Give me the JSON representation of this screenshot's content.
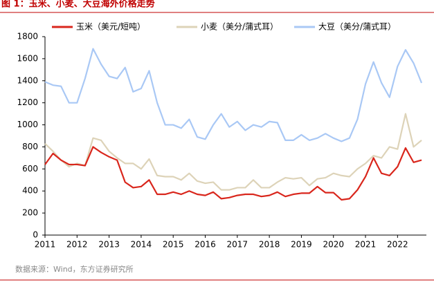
{
  "chart_data": {
    "type": "line",
    "title": "图 1：玉米、小麦、大豆海外价格走势",
    "source": "数据来源：Wind，东方证券研究所",
    "x": [
      2011,
      2011.25,
      2011.5,
      2011.75,
      2012,
      2012.25,
      2012.5,
      2012.75,
      2013,
      2013.25,
      2013.5,
      2013.75,
      2014,
      2014.25,
      2014.5,
      2014.75,
      2015,
      2015.25,
      2015.5,
      2015.75,
      2016,
      2016.25,
      2016.5,
      2016.75,
      2017,
      2017.25,
      2017.5,
      2017.75,
      2018,
      2018.25,
      2018.5,
      2018.75,
      2019,
      2019.25,
      2019.5,
      2019.75,
      2020,
      2020.25,
      2020.5,
      2020.75,
      2021,
      2021.25,
      2021.5,
      2021.75,
      2022,
      2022.25,
      2022.5,
      2022.75
    ],
    "series": [
      {
        "name": "玉米（美元/短吨）",
        "color": "#d9261c",
        "values": [
          640,
          740,
          680,
          640,
          640,
          630,
          800,
          750,
          710,
          680,
          480,
          430,
          440,
          500,
          370,
          370,
          390,
          370,
          400,
          370,
          360,
          390,
          330,
          340,
          360,
          370,
          370,
          350,
          360,
          390,
          350,
          370,
          380,
          380,
          440,
          385,
          385,
          320,
          330,
          410,
          530,
          700,
          560,
          540,
          620,
          790,
          660,
          680
        ]
      },
      {
        "name": "小麦（美分/蒲式耳）",
        "color": "#ddd3b8",
        "values": [
          830,
          760,
          680,
          620,
          650,
          630,
          880,
          860,
          760,
          700,
          650,
          650,
          600,
          690,
          540,
          530,
          530,
          500,
          560,
          490,
          470,
          480,
          410,
          410,
          430,
          430,
          500,
          430,
          430,
          480,
          520,
          510,
          520,
          450,
          510,
          520,
          560,
          540,
          530,
          600,
          650,
          720,
          700,
          800,
          780,
          1100,
          800,
          860
        ]
      },
      {
        "name": "大豆（美分/蒲式耳）",
        "color": "#a9c8f5",
        "values": [
          1390,
          1360,
          1350,
          1200,
          1200,
          1420,
          1690,
          1550,
          1440,
          1420,
          1520,
          1300,
          1330,
          1490,
          1200,
          1000,
          1000,
          970,
          1050,
          890,
          870,
          1000,
          1100,
          980,
          1030,
          950,
          1000,
          980,
          1030,
          1020,
          860,
          860,
          910,
          860,
          880,
          920,
          880,
          850,
          880,
          1050,
          1370,
          1570,
          1380,
          1250,
          1530,
          1680,
          1560,
          1380
        ]
      }
    ],
    "xlim": [
      2011,
      2022.9
    ],
    "xticks": [
      2011,
      2012,
      2013,
      2014,
      2015,
      2016,
      2017,
      2018,
      2019,
      2020,
      2021,
      2022
    ],
    "ylim": [
      0,
      1800
    ],
    "yticks": [
      0,
      200,
      400,
      600,
      800,
      1000,
      1200,
      1400,
      1600,
      1800
    ],
    "grid": false,
    "legend": "top"
  }
}
